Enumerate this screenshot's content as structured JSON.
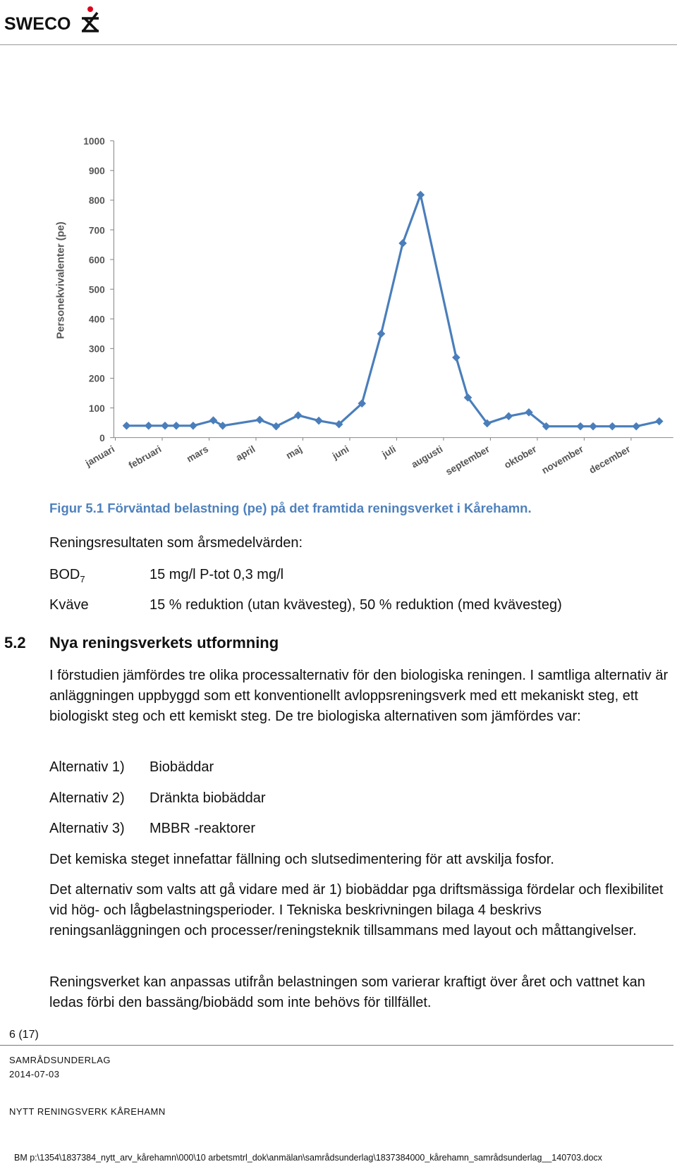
{
  "header": {
    "logo_text": "SWECO"
  },
  "chart_data": {
    "type": "line",
    "y_label": "Personekvivalenter (pe)",
    "x": [
      0.24,
      0.71,
      1.06,
      1.3,
      1.66,
      2.09,
      2.29,
      3.08,
      3.43,
      3.9,
      4.34,
      4.77,
      5.26,
      5.67,
      6.13,
      6.51,
      7.27,
      7.52,
      7.93,
      8.39,
      8.82,
      9.19,
      9.92,
      10.19,
      10.6,
      11.11,
      11.6
    ],
    "values": [
      40,
      40,
      40,
      40,
      40,
      58,
      40,
      60,
      38,
      75,
      57,
      45,
      115,
      350,
      655,
      818,
      270,
      135,
      48,
      72,
      85,
      38,
      38,
      38,
      38,
      38,
      55
    ],
    "color": "#4a7ebb",
    "xlim": [
      0,
      11.9
    ],
    "xticks": [
      {
        "value": 0,
        "label": "januari"
      },
      {
        "value": 1,
        "label": "februari"
      },
      {
        "value": 2,
        "label": "mars"
      },
      {
        "value": 3,
        "label": "april"
      },
      {
        "value": 4,
        "label": "maj"
      },
      {
        "value": 5,
        "label": "juni"
      },
      {
        "value": 6,
        "label": "juli"
      },
      {
        "value": 7,
        "label": "augusti"
      },
      {
        "value": 8,
        "label": "september"
      },
      {
        "value": 9,
        "label": "oktober"
      },
      {
        "value": 10,
        "label": "november"
      },
      {
        "value": 11,
        "label": "december"
      }
    ],
    "ylim": [
      0,
      1000
    ],
    "yticks": [
      0,
      100,
      200,
      300,
      400,
      500,
      600,
      700,
      800,
      900,
      1000
    ],
    "grid": false
  },
  "caption": "Figur 5.1 Förväntad belastning (pe) på det framtida reningsverket i Kårehamn.",
  "results": {
    "intro": "Reningsresultaten som årsmedelvärden:",
    "bod_label": "BOD",
    "bod_subscript": "7",
    "bod_value": "15 mg/l P-tot   0,3 mg/l",
    "n_label": "Kväve",
    "n_value": "15 % reduktion (utan kvävesteg), 50 % reduktion (med kvävesteg)"
  },
  "section": {
    "number": "5.2",
    "title": "Nya reningsverkets utformning",
    "paragraph1": "I förstudien jämfördes tre olika processalternativ för den biologiska reningen. I samtliga alternativ är anläggningen uppbyggd som ett konventionellt avloppsreningsverk med ett mekaniskt steg, ett biologiskt steg och ett kemiskt steg. De tre biologiska alternativen som jämfördes var:",
    "alternatives": [
      {
        "label": "Alternativ 1)",
        "text": "Biobäddar"
      },
      {
        "label": "Alternativ 2)",
        "text": "Dränkta biobäddar"
      },
      {
        "label": "Alternativ 3)",
        "text": "MBBR -reaktorer"
      }
    ],
    "paragraph2": "Det kemiska steget innefattar fällning och slutsedimentering för att avskilja fosfor.",
    "paragraph3": "Det alternativ som valts att gå vidare med är 1) biobäddar pga driftsmässiga fördelar och flexibilitet vid hög- och lågbelastningsperioder. I Tekniska beskrivningen bilaga 4 beskrivs reningsanläggningen och processer/reningsteknik tillsammans med layout och måttangivelser.",
    "paragraph4": "Reningsverket kan anpassas utifrån belastningen som varierar kraftigt över året och vattnet kan ledas förbi den bassäng/biobädd som inte behövs för tillfället."
  },
  "footer": {
    "page": "6 (17)",
    "doc_type": "SAMRÅDSUNDERLAG",
    "date": "2014-07-03",
    "project": "NYTT RENINGSVERK KÅREHAMN",
    "path": "BM p:\\1354\\1837384_nytt_arv_kårehamn\\000\\10 arbetsmtrl_dok\\anmälan\\samrådsunderlag\\1837384000_kårehamn_samrådsunderlag__140703.docx"
  }
}
